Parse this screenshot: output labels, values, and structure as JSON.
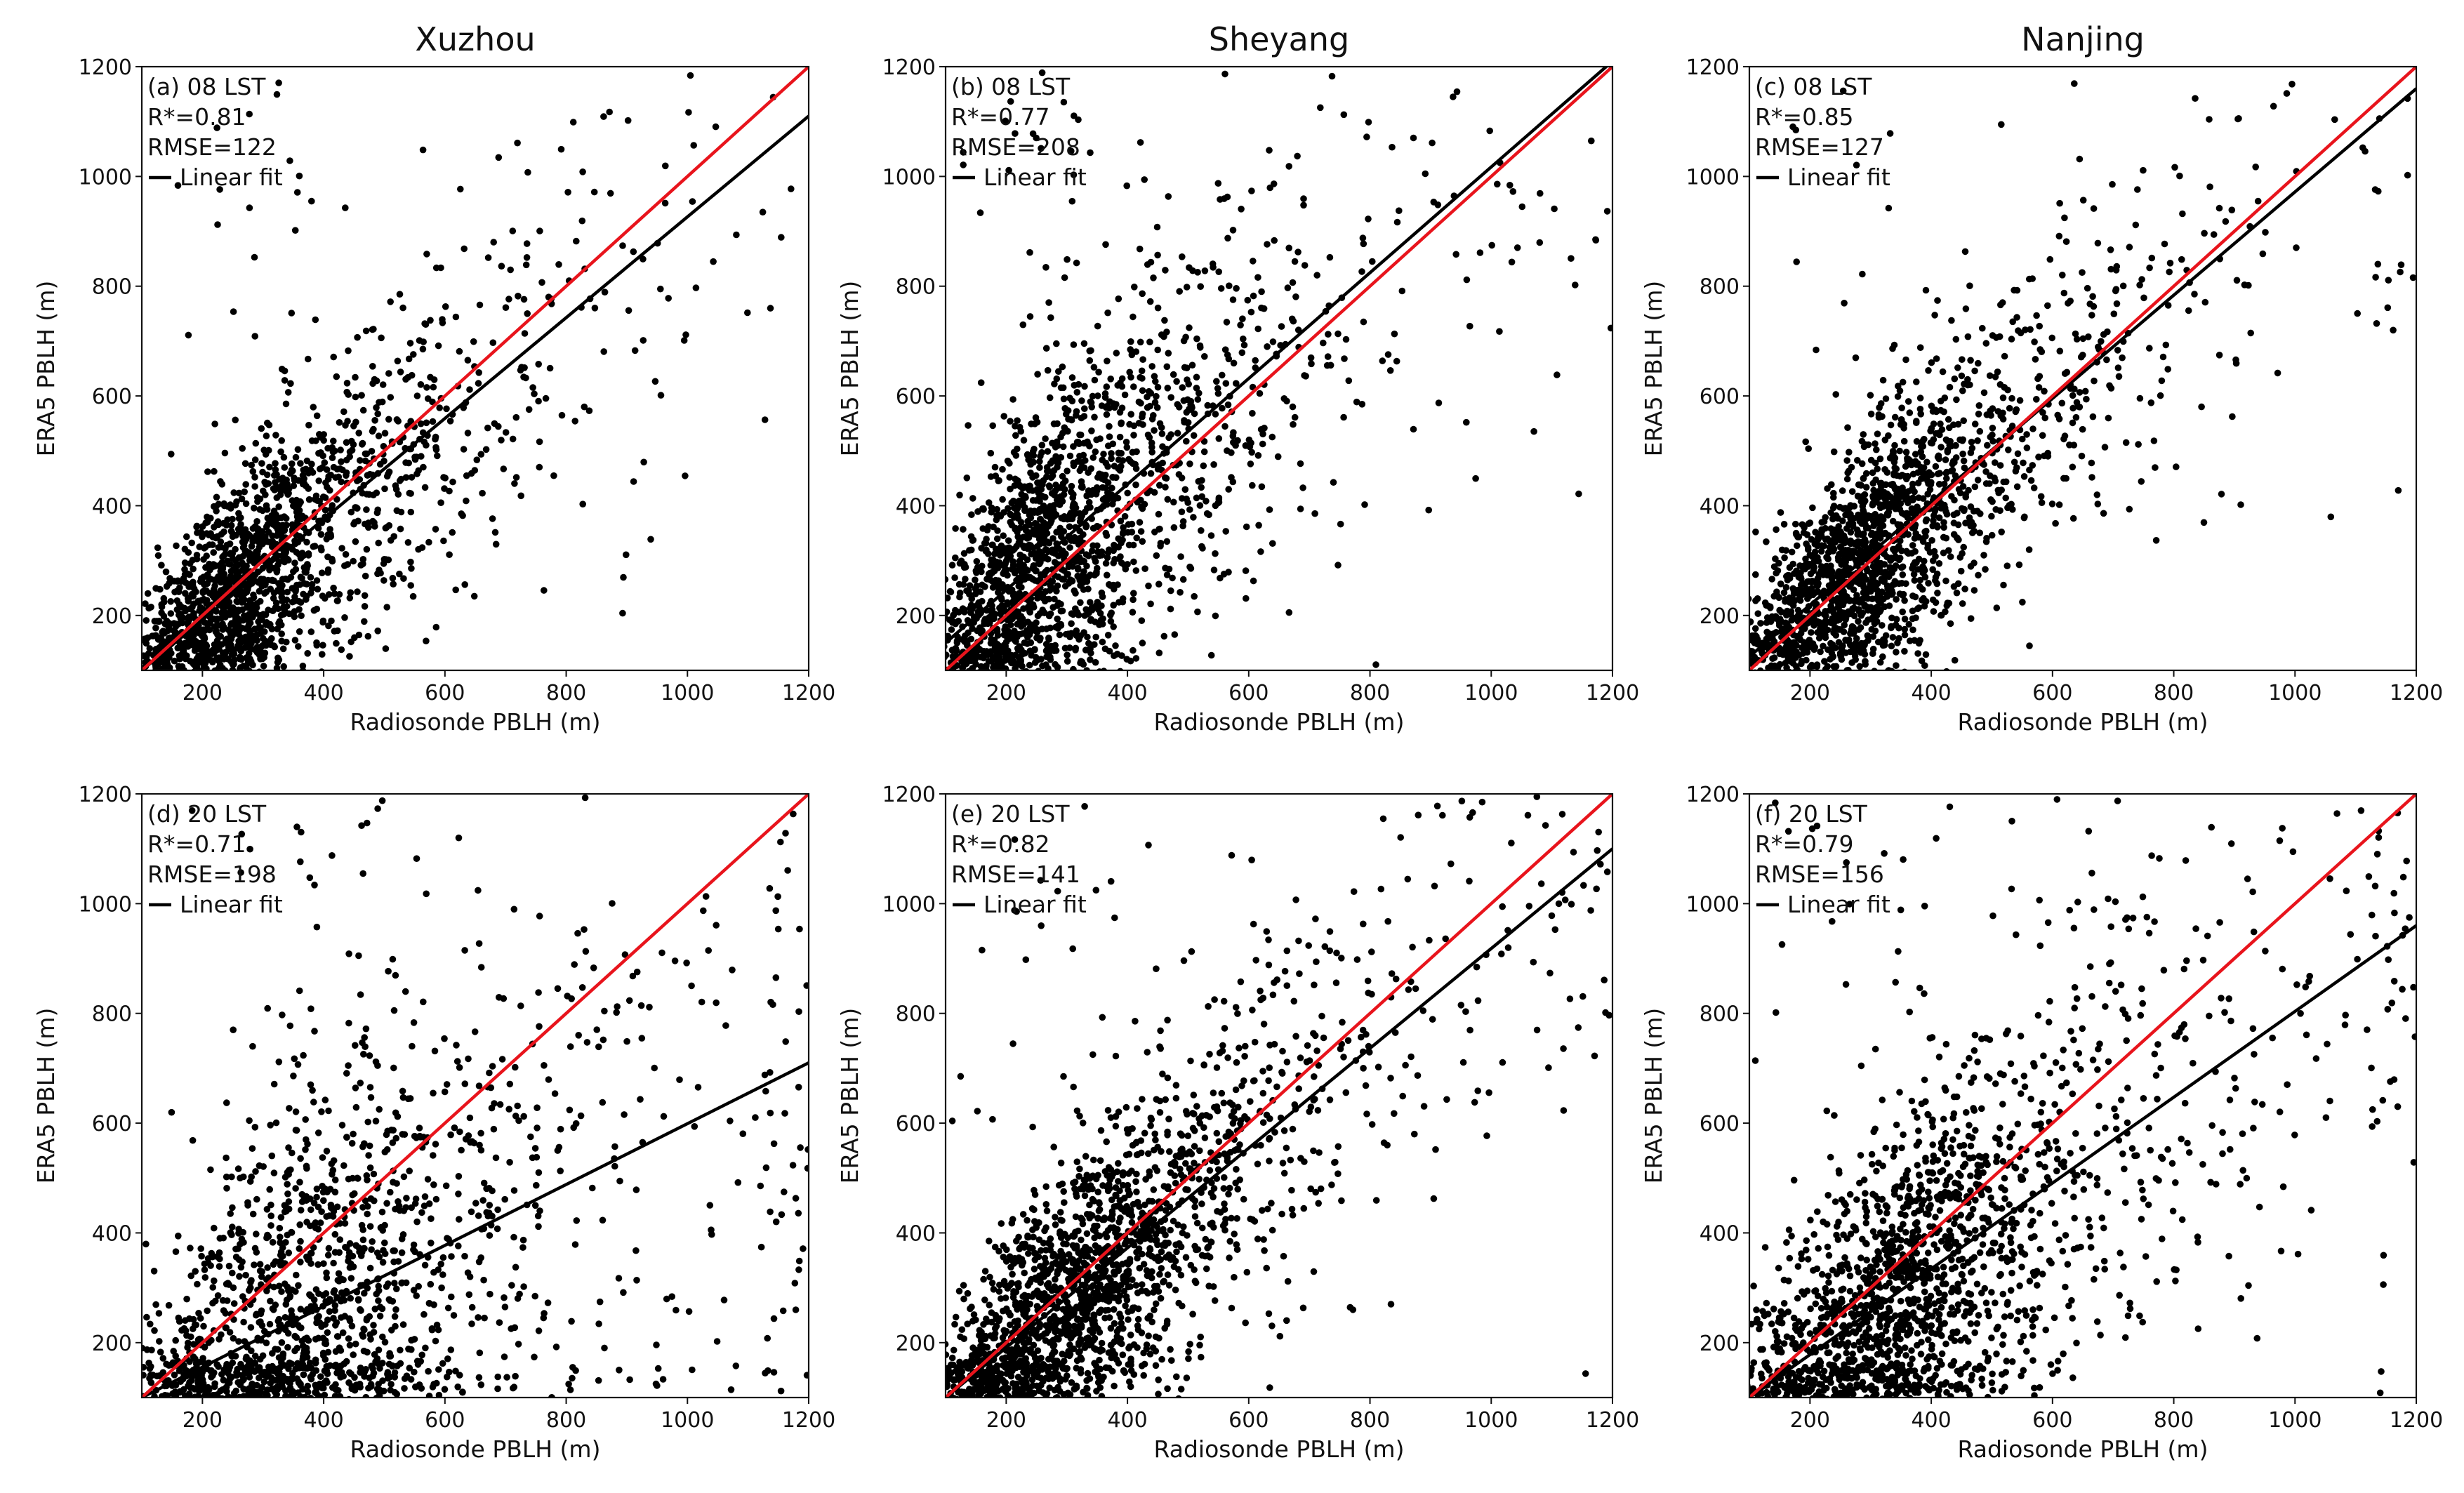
{
  "figure": {
    "column_titles": [
      "Xuzhou",
      "Sheyang",
      "Nanjing"
    ]
  },
  "chart_data": [
    {
      "type": "scatter",
      "station": "Xuzhou",
      "panel_label": "(a) 08 LST",
      "stat_r": "R*=0.81",
      "stat_rmse": "RMSE=122",
      "legend_label": "Linear fit",
      "xlabel": "Radiosonde PBLH (m)",
      "ylabel": "ERA5 PBLH (m)",
      "xlim": [
        100,
        1200
      ],
      "ylim": [
        100,
        1200
      ],
      "xticks": [
        200,
        400,
        600,
        800,
        1000,
        1200
      ],
      "yticks": [
        200,
        400,
        600,
        800,
        1000,
        1200
      ],
      "grid": false,
      "one_to_one_color": "#e8141c",
      "fit_color": "#000000",
      "fit_line": {
        "x": [
          100,
          1200
        ],
        "y": [
          100,
          1110
        ]
      },
      "one_to_one": {
        "x": [
          100,
          1200
        ],
        "y": [
          100,
          1200
        ]
      },
      "points": {
        "n": 1700,
        "seed": 11,
        "slope": 0.92,
        "intercept": 8,
        "x_mode": 230,
        "x_tail": 190,
        "x_max": 1200,
        "noise_base": 60,
        "noise_rel": 0.18,
        "outlier_frac": 0.02
      }
    },
    {
      "type": "scatter",
      "station": "Sheyang",
      "panel_label": "(b) 08 LST",
      "stat_r": "R*=0.77",
      "stat_rmse": "RMSE=208",
      "legend_label": "Linear fit",
      "xlabel": "Radiosonde PBLH (m)",
      "ylabel": "ERA5 PBLH (m)",
      "xlim": [
        100,
        1200
      ],
      "ylim": [
        100,
        1200
      ],
      "xticks": [
        200,
        400,
        600,
        800,
        1000,
        1200
      ],
      "yticks": [
        200,
        400,
        600,
        800,
        1000,
        1200
      ],
      "grid": false,
      "one_to_one_color": "#e8141c",
      "fit_color": "#000000",
      "fit_line": {
        "x": [
          100,
          1200
        ],
        "y": [
          150,
          1210
        ]
      },
      "one_to_one": {
        "x": [
          100,
          1200
        ],
        "y": [
          100,
          1200
        ]
      },
      "points": {
        "n": 1800,
        "seed": 23,
        "slope": 0.96,
        "intercept": 54,
        "x_mode": 220,
        "x_tail": 210,
        "x_max": 1200,
        "noise_base": 85,
        "noise_rel": 0.2,
        "outlier_frac": 0.05
      }
    },
    {
      "type": "scatter",
      "station": "Nanjing",
      "panel_label": "(c) 08 LST",
      "stat_r": "R*=0.85",
      "stat_rmse": "RMSE=127",
      "legend_label": "Linear fit",
      "xlabel": "Radiosonde PBLH (m)",
      "ylabel": "ERA5 PBLH (m)",
      "xlim": [
        100,
        1200
      ],
      "ylim": [
        100,
        1200
      ],
      "xticks": [
        200,
        400,
        600,
        800,
        1000,
        1200
      ],
      "yticks": [
        200,
        400,
        600,
        800,
        1000,
        1200
      ],
      "grid": false,
      "one_to_one_color": "#e8141c",
      "fit_color": "#000000",
      "fit_line": {
        "x": [
          100,
          1200
        ],
        "y": [
          125,
          1160
        ]
      },
      "one_to_one": {
        "x": [
          100,
          1200
        ],
        "y": [
          100,
          1200
        ]
      },
      "points": {
        "n": 1800,
        "seed": 37,
        "slope": 0.94,
        "intercept": 31,
        "x_mode": 240,
        "x_tail": 200,
        "x_max": 1200,
        "noise_base": 60,
        "noise_rel": 0.16,
        "outlier_frac": 0.02
      }
    },
    {
      "type": "scatter",
      "station": "Xuzhou",
      "panel_label": "(d) 20 LST",
      "stat_r": "R*=0.71",
      "stat_rmse": "RMSE=198",
      "legend_label": "Linear fit",
      "xlabel": "Radiosonde PBLH (m)",
      "ylabel": "ERA5 PBLH (m)",
      "xlim": [
        100,
        1200
      ],
      "ylim": [
        100,
        1200
      ],
      "xticks": [
        200,
        400,
        600,
        800,
        1000,
        1200
      ],
      "yticks": [
        200,
        400,
        600,
        800,
        1000,
        1200
      ],
      "grid": false,
      "one_to_one_color": "#e8141c",
      "fit_color": "#000000",
      "fit_line": {
        "x": [
          100,
          1200
        ],
        "y": [
          100,
          710
        ]
      },
      "one_to_one": {
        "x": [
          100,
          1200
        ],
        "y": [
          100,
          1200
        ]
      },
      "points": {
        "n": 1500,
        "seed": 41,
        "slope": 0.555,
        "intercept": 44,
        "x_mode": 300,
        "x_tail": 280,
        "x_max": 1200,
        "noise_base": 100,
        "noise_rel": 0.25,
        "outlier_frac": 0.04
      }
    },
    {
      "type": "scatter",
      "station": "Sheyang",
      "panel_label": "(e) 20 LST",
      "stat_r": "R*=0.82",
      "stat_rmse": "RMSE=141",
      "legend_label": "Linear fit",
      "xlabel": "Radiosonde PBLH (m)",
      "ylabel": "ERA5 PBLH (m)",
      "xlim": [
        100,
        1200
      ],
      "ylim": [
        100,
        1200
      ],
      "xticks": [
        200,
        400,
        600,
        800,
        1000,
        1200
      ],
      "yticks": [
        200,
        400,
        600,
        800,
        1000,
        1200
      ],
      "grid": false,
      "one_to_one_color": "#e8141c",
      "fit_color": "#000000",
      "fit_line": {
        "x": [
          100,
          1200
        ],
        "y": [
          100,
          1100
        ]
      },
      "one_to_one": {
        "x": [
          100,
          1200
        ],
        "y": [
          100,
          1200
        ]
      },
      "points": {
        "n": 1900,
        "seed": 53,
        "slope": 0.91,
        "intercept": 9,
        "x_mode": 260,
        "x_tail": 230,
        "x_max": 1200,
        "noise_base": 65,
        "noise_rel": 0.16,
        "outlier_frac": 0.03
      }
    },
    {
      "type": "scatter",
      "station": "Nanjing",
      "panel_label": "(f) 20 LST",
      "stat_r": "R*=0.79",
      "stat_rmse": "RMSE=156",
      "legend_label": "Linear fit",
      "xlabel": "Radiosonde PBLH (m)",
      "ylabel": "ERA5 PBLH (m)",
      "xlim": [
        100,
        1200
      ],
      "ylim": [
        100,
        1200
      ],
      "xticks": [
        200,
        400,
        600,
        800,
        1000,
        1200
      ],
      "yticks": [
        200,
        400,
        600,
        800,
        1000,
        1200
      ],
      "grid": false,
      "one_to_one_color": "#e8141c",
      "fit_color": "#000000",
      "fit_line": {
        "x": [
          100,
          1200
        ],
        "y": [
          100,
          960
        ]
      },
      "one_to_one": {
        "x": [
          100,
          1200
        ],
        "y": [
          100,
          1200
        ]
      },
      "points": {
        "n": 1700,
        "seed": 67,
        "slope": 0.78,
        "intercept": 22,
        "x_mode": 290,
        "x_tail": 250,
        "x_max": 1200,
        "noise_base": 85,
        "noise_rel": 0.2,
        "outlier_frac": 0.03
      }
    }
  ]
}
